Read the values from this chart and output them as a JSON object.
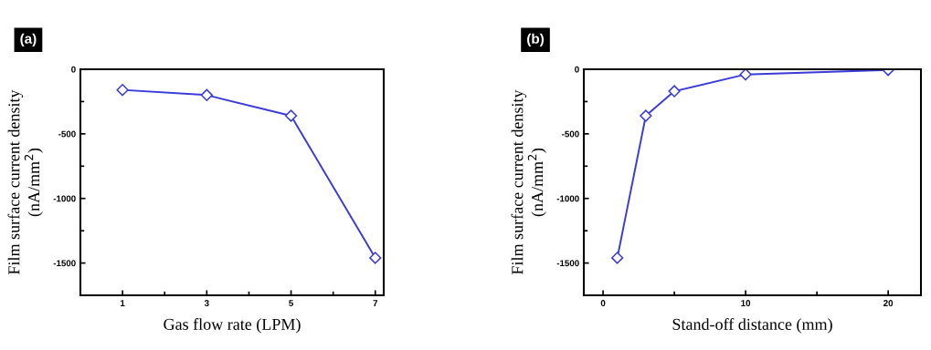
{
  "chart_data": [
    {
      "type": "line",
      "title": "(a)",
      "xlabel": "Gas flow rate (LPM)",
      "ylabel": "Film surface current density\n(nA/mm$^{2}$)",
      "x": [
        1,
        3,
        5,
        7
      ],
      "series": [
        {
          "color": "#3b3bd8",
          "values": [
            -160,
            -200,
            -360,
            -1460
          ]
        }
      ],
      "xlim": [
        0,
        7.2
      ],
      "xticks": [
        1,
        {
          "value": 2,
          "label": null
        },
        3,
        {
          "value": 4,
          "label": null
        },
        5,
        {
          "value": 6,
          "label": null
        },
        7
      ],
      "ylim": [
        -1750,
        0
      ],
      "yticks": [
        -1500,
        {
          "value": -1250,
          "label": null
        },
        -1000,
        {
          "value": -750,
          "label": null
        },
        -500,
        {
          "value": -250,
          "label": null
        },
        0
      ],
      "marker": "diamond",
      "line_style": "solid",
      "grid": false,
      "legend": false
    },
    {
      "type": "line",
      "title": "(b)",
      "xlabel": "Stand-off distance (mm)",
      "ylabel": "Film surface current density\n(nA/mm$^{2}$)",
      "x": [
        1,
        3,
        5,
        10,
        20
      ],
      "series": [
        {
          "color": "#3b3bd8",
          "values": [
            -1460,
            -360,
            -170,
            -40,
            -5
          ]
        }
      ],
      "xlim": [
        -1.35,
        22.3
      ],
      "xticks": [
        0,
        {
          "value": 5,
          "label": null
        },
        10,
        {
          "value": 15,
          "label": null
        },
        20
      ],
      "ylim": [
        -1750,
        0
      ],
      "yticks": [
        -1500,
        {
          "value": -1250,
          "label": null
        },
        -1000,
        {
          "value": -750,
          "label": null
        },
        -500,
        {
          "value": -250,
          "label": null
        },
        0
      ],
      "marker": "diamond",
      "line_style": "solid",
      "grid": false,
      "legend": false
    }
  ]
}
